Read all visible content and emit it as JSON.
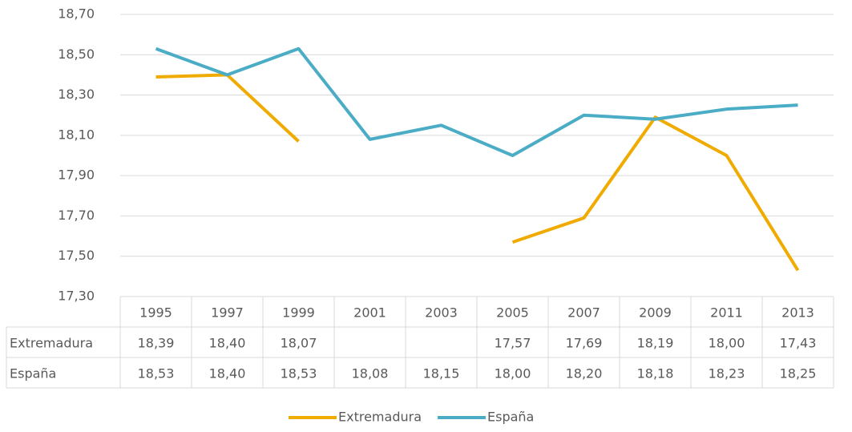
{
  "chart_data": {
    "type": "line",
    "categories": [
      "1995",
      "1997",
      "1999",
      "2001",
      "2003",
      "2005",
      "2007",
      "2009",
      "2011",
      "2013"
    ],
    "series": [
      {
        "name": "Extremadura",
        "color": "#f0ab00",
        "values": [
          18.39,
          18.4,
          18.07,
          null,
          null,
          17.57,
          17.69,
          18.19,
          18.0,
          17.43
        ],
        "value_labels": [
          "18,39",
          "18,40",
          "18,07",
          null,
          null,
          "17,57",
          "17,69",
          "18,19",
          "18,00",
          "17,43"
        ]
      },
      {
        "name": "España",
        "color": "#4bacc6",
        "values": [
          18.53,
          18.4,
          18.53,
          18.08,
          18.15,
          18.0,
          18.2,
          18.18,
          18.23,
          18.25
        ],
        "value_labels": [
          "18,53",
          "18,40",
          "18,53",
          "18,08",
          "18,15",
          "18,00",
          "18,20",
          "18,18",
          "18,23",
          "18,25"
        ]
      }
    ],
    "ylim": [
      17.3,
      18.7
    ],
    "yticks": [
      {
        "value": 17.3,
        "label": "17,30"
      },
      {
        "value": 17.5,
        "label": "17,50"
      },
      {
        "value": 17.7,
        "label": "17,70"
      },
      {
        "value": 17.9,
        "label": "17,90"
      },
      {
        "value": 18.1,
        "label": "18,10"
      },
      {
        "value": 18.3,
        "label": "18,30"
      },
      {
        "value": 18.5,
        "label": "18,50"
      },
      {
        "value": 18.7,
        "label": "18,70"
      }
    ],
    "grid": true,
    "legend": "bottom"
  }
}
